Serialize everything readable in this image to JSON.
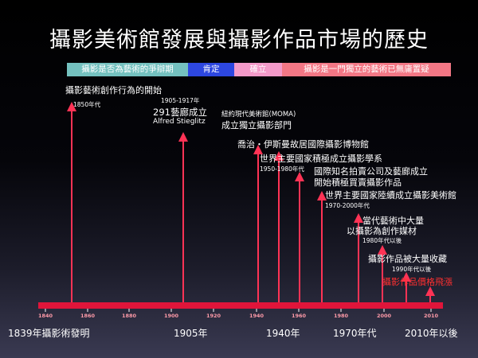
{
  "title": "攝影美術館發展與攝影作品市場的歷史",
  "phases": [
    {
      "label": "攝影是否為藝術的爭辯期",
      "color": "#74c1bf"
    },
    {
      "label": "肯定",
      "color": "#2d47e0"
    },
    {
      "label": "確立",
      "color": "#f49ac9"
    },
    {
      "label": "攝影是一門獨立的藝術已無庸置疑",
      "color": "#f37785"
    }
  ],
  "ticks": [
    "1840",
    "1860",
    "1880",
    "1900",
    "1920",
    "1940",
    "1960",
    "1980",
    "2000",
    "2010"
  ],
  "events": {
    "e1": {
      "line1": "攝影藝術創作行為的開始",
      "line2": "1850年代"
    },
    "e2": {
      "line1": "1905-1917年",
      "line2": "291藝廊成立",
      "line3": "Alfred Stieglitz"
    },
    "e3": {
      "line1": "紐約現代美術館(MOMA)",
      "line2": "成立獨立攝影部門"
    },
    "e4": {
      "line1": "喬治・伊斯曼故居國際攝影博物館"
    },
    "e5": {
      "line1": "世界主要國家積極成立攝影學系",
      "line2": "1950-1980年代"
    },
    "e6": {
      "line1": "國際知名拍賣公司及藝廊成立",
      "line2": "開始積極買賣攝影作品"
    },
    "e7": {
      "line1": "世界主要國家陸續成立攝影美術館",
      "line2": "1970-2000年代"
    },
    "e8": {
      "line1": "當代藝術中大量",
      "line2": "以攝影為創作媒材",
      "line3": "1980年代以後"
    },
    "e9": {
      "line1": "攝影作品被大量收藏",
      "line2": "1990年代以後"
    },
    "e10": {
      "line1": "攝影作品價格飛漲"
    }
  },
  "axis_labels": {
    "a1": "1839年攝影術發明",
    "a2": "1905年",
    "a3": "1940年",
    "a4": "1970年代",
    "a5": "2010年以後"
  },
  "colors": {
    "axis": "#e0153a",
    "arrow": "#ff3355",
    "text": "#ffffff",
    "highlight": "#ff3030"
  }
}
